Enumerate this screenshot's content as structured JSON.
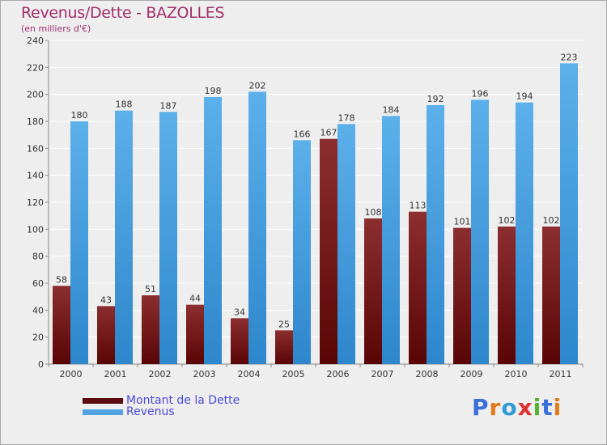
{
  "chart_data": {
    "type": "bar",
    "title": "Revenus/Dette - BAZOLLES",
    "subtitle": "(en milliers d'€)",
    "categories": [
      "2000",
      "2001",
      "2002",
      "2003",
      "2004",
      "2005",
      "2006",
      "2007",
      "2008",
      "2009",
      "2010",
      "2011"
    ],
    "series": [
      {
        "name": "Montant de la Dette",
        "color": "#7a1f24",
        "values": [
          58,
          43,
          51,
          44,
          34,
          25,
          167,
          108,
          113,
          101,
          102,
          102
        ]
      },
      {
        "name": "Revenus",
        "color": "#4ea3e0",
        "values": [
          180,
          188,
          187,
          198,
          202,
          166,
          178,
          184,
          192,
          196,
          194,
          223
        ]
      }
    ],
    "ylim": [
      0,
      240
    ],
    "yticks": [
      0,
      20,
      40,
      60,
      80,
      100,
      120,
      140,
      160,
      180,
      200,
      220,
      240
    ],
    "grid": true,
    "legend": "bottom-left"
  },
  "logo": {
    "letters": [
      "P",
      "r",
      "o",
      "x",
      "i",
      "t",
      "i"
    ],
    "colors": [
      "#3a6fd8",
      "#e07a1a",
      "#2e9ad8",
      "#e03030",
      "#58b030",
      "#3a6fd8",
      "#e07a1a"
    ]
  }
}
